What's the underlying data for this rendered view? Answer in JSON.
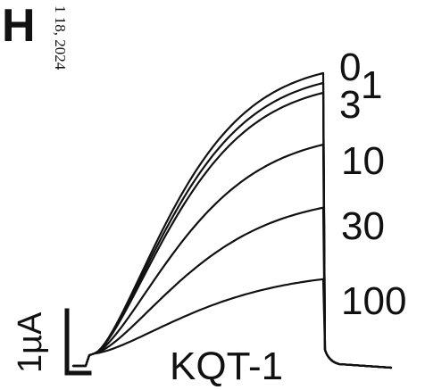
{
  "panel": {
    "letter": "H"
  },
  "date_stamp": "1 18, 2024",
  "scale_bar": {
    "label": "1µA"
  },
  "construct_label": "KQT-1",
  "traces": [
    {
      "concentration": "0",
      "relative_level": 1.0
    },
    {
      "concentration": "1",
      "relative_level": 0.965
    },
    {
      "concentration": "3",
      "relative_level": 0.93
    },
    {
      "concentration": "10",
      "relative_level": 0.745
    },
    {
      "concentration": "30",
      "relative_level": 0.52
    },
    {
      "concentration": "100",
      "relative_level": 0.265
    }
  ]
}
